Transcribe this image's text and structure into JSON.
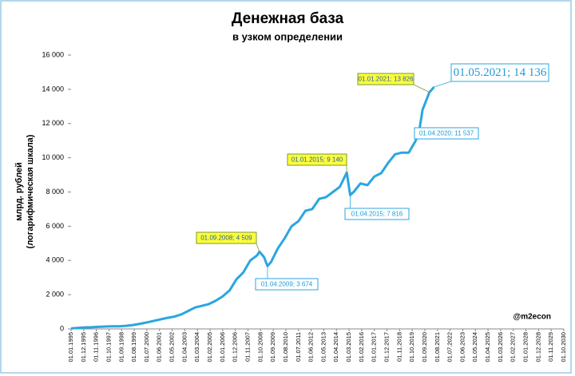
{
  "chart_data": {
    "type": "line",
    "title": "Денежная база",
    "subtitle": "в узком определении",
    "y_label": [
      "млрд. рублей",
      "(логарифмическая шкала)"
    ],
    "watermark": "@m2econ",
    "x": [
      "01.01.1995",
      "01.07.1995",
      "01.01.1996",
      "01.07.1996",
      "01.01.1997",
      "01.07.1997",
      "01.01.1998",
      "01.07.1998",
      "01.01.1999",
      "01.07.1999",
      "01.01.2000",
      "01.07.2000",
      "01.01.2001",
      "01.07.2001",
      "01.01.2002",
      "01.07.2002",
      "01.01.2003",
      "01.07.2003",
      "01.01.2004",
      "01.07.2004",
      "01.01.2005",
      "01.07.2005",
      "01.01.2006",
      "01.07.2006",
      "01.01.2007",
      "01.07.2007",
      "01.01.2008",
      "01.07.2008",
      "01.09.2008",
      "01.01.2009",
      "01.04.2009",
      "01.07.2009",
      "01.01.2010",
      "01.07.2010",
      "01.01.2011",
      "01.07.2011",
      "01.01.2012",
      "01.07.2012",
      "01.01.2013",
      "01.07.2013",
      "01.01.2014",
      "01.07.2014",
      "01.01.2015",
      "01.04.2015",
      "01.07.2015",
      "01.01.2016",
      "01.07.2016",
      "01.01.2017",
      "01.07.2017",
      "01.01.2018",
      "01.07.2018",
      "01.01.2019",
      "01.07.2019",
      "01.01.2020",
      "01.04.2020",
      "01.07.2020",
      "01.01.2021",
      "01.05.2021"
    ],
    "series": [
      {
        "name": "Денежная база",
        "color": "#2aa6e0",
        "values": [
          30,
          60,
          90,
          100,
          120,
          140,
          150,
          150,
          180,
          230,
          300,
          380,
          470,
          560,
          650,
          720,
          850,
          1050,
          1250,
          1350,
          1450,
          1650,
          1900,
          2250,
          2900,
          3300,
          4000,
          4300,
          4509,
          4200,
          3674,
          3900,
          4700,
          5300,
          6000,
          6300,
          6900,
          7000,
          7600,
          7700,
          8000,
          8300,
          9140,
          7816,
          8000,
          8500,
          8400,
          8900,
          9100,
          9700,
          10200,
          10300,
          10300,
          11000,
          11537,
          12800,
          13826,
          14136
        ]
      }
    ],
    "xlim": [
      "01.01.1995",
      "01.10.2030"
    ],
    "xticks": [
      "01.01.1995",
      "01.12.1995",
      "01.11.1996",
      "01.10.1997",
      "01.09.1998",
      "01.08.1999",
      "01.07.2000",
      "01.06.2001",
      "01.05.2002",
      "01.04.2003",
      "01.03.2004",
      "01.02.2005",
      "01.01.2006",
      "01.12.2006",
      "01.11.2007",
      "01.10.2008",
      "01.09.2009",
      "01.08.2010",
      "01.07.2011",
      "01.06.2012",
      "01.05.2013",
      "01.04.2014",
      "01.03.2015",
      "01.02.2016",
      "01.01.2017",
      "01.12.2017",
      "01.11.2018",
      "01.10.2019",
      "01.09.2020",
      "01.08.2021",
      "01.07.2022",
      "01.06.2023",
      "01.05.2024",
      "01.04.2025",
      "01.03.2026",
      "01.02.2027",
      "01.01.2028",
      "01.12.2028",
      "01.11.2029",
      "01.10.2030"
    ],
    "ylim": [
      0,
      16000
    ],
    "yticks": [
      0,
      {
        "value": 2000,
        "label": "2 000"
      },
      {
        "value": 4000,
        "label": "4 000"
      },
      {
        "value": 6000,
        "label": "6 000"
      },
      {
        "value": 8000,
        "label": "8 000"
      },
      {
        "value": 10000,
        "label": "10 000"
      },
      {
        "value": 12000,
        "label": "12 000"
      },
      {
        "value": 14000,
        "label": "14 000"
      },
      {
        "value": 16000,
        "label": "16 000"
      }
    ],
    "annotations": [
      {
        "x": "01.01.2021",
        "y": 13826,
        "label": "01.01.2021; 13 826"
      },
      {
        "x": "01.05.2021",
        "y": 14136,
        "label": "01.05.2021; 14 136"
      },
      {
        "x": "01.04.2020",
        "y": 11537,
        "label": "01.04.2020; 11 537"
      },
      {
        "x": "01.01.2015",
        "y": 9140,
        "label": "01.01.2015; 9 140"
      },
      {
        "x": "01.04.2015",
        "y": 7816,
        "label": "01.04.2015; 7 816"
      },
      {
        "x": "01.09.2008",
        "y": 4509,
        "label": "01.09.2008; 4 509"
      },
      {
        "x": "01.04.2009",
        "y": 3674,
        "label": "01.04.2009; 3 674"
      }
    ]
  }
}
